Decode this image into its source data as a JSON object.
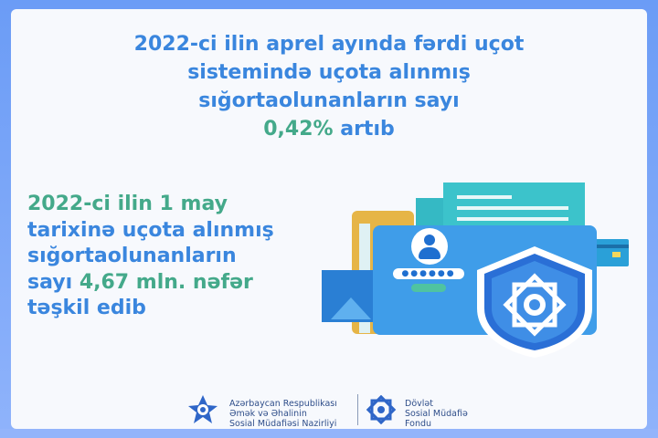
{
  "headline": {
    "line1": "2022-ci ilin aprel ayında fərdi uçot",
    "line2": "sistemində uçota alınmış",
    "line3": "sığortaolunanların sayı",
    "percent": "0,42%",
    "suffix": "artıb"
  },
  "detail": {
    "date": "2022-ci ilin 1 may",
    "line2": "tarixinə uçota alınmış",
    "line3": "sığortaolunanların",
    "prefix": "sayı",
    "count": "4,67 mln. nəfər",
    "line5": "təşkil edib"
  },
  "footer": {
    "ministry": [
      "Azərbaycan Respublikası",
      "Əmək və Əhalinin",
      "Sosial Müdafiəsi Nazirliyi"
    ],
    "fund": [
      "Dövlət",
      "Sosial Müdafiə",
      "Fondu"
    ]
  },
  "colors": {
    "blue": "#3a86de",
    "green": "#44a98a",
    "frame": "#6b9cf6"
  }
}
